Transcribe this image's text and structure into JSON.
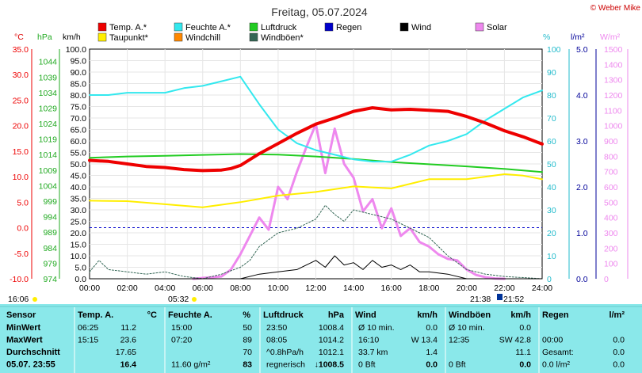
{
  "header": {
    "title": "Freitag, 05.07.2024",
    "copyright": "© Weber Mike"
  },
  "legend": [
    {
      "label": "Temp. A.*",
      "color": "#ee0000"
    },
    {
      "label": "Feuchte A.*",
      "color": "#33e8ee"
    },
    {
      "label": "Luftdruck",
      "color": "#22cc22"
    },
    {
      "label": "Regen",
      "color": "#0000cc"
    },
    {
      "label": "Wind",
      "color": "#000000"
    },
    {
      "label": "Solar",
      "color": "#ee88ee"
    },
    {
      "label": "Taupunkt*",
      "color": "#ffee00"
    },
    {
      "label": "Windchill",
      "color": "#ff8800"
    },
    {
      "label": "Windböen*",
      "color": "#336655"
    }
  ],
  "units": {
    "temp": "°C",
    "press": "hPa",
    "wind": "km/h",
    "hum": "%",
    "rain": "l/m²",
    "solar": "W/m²"
  },
  "events": {
    "t1": "16:06",
    "t2": "05:32",
    "t3": "21:38",
    "t4": "21:52"
  },
  "chart_data": {
    "type": "line",
    "x_range_hours": [
      0,
      24
    ],
    "x_ticks": [
      "00:00",
      "02:00",
      "04:00",
      "06:00",
      "08:00",
      "10:00",
      "12:00",
      "14:00",
      "16:00",
      "18:00",
      "20:00",
      "22:00",
      "24:00"
    ],
    "axes": {
      "temp": {
        "min": -10,
        "max": 35,
        "ticks": [
          "35.0",
          "30.0",
          "25.0",
          "20.0",
          "15.0",
          "10.0",
          "5.0",
          "0.0",
          "-5.0",
          "-10.0"
        ],
        "color": "#ee0000"
      },
      "press": {
        "min": 974,
        "max": 1048,
        "ticks": [
          "1044",
          "1039",
          "1034",
          "1029",
          "1024",
          "1019",
          "1014",
          "1009",
          "1004",
          "999",
          "994",
          "989",
          "984",
          "979",
          "974"
        ],
        "color": "#22aa22"
      },
      "wind": {
        "min": 0,
        "max": 100,
        "ticks": [
          "100.0",
          "95.0",
          "90.0",
          "85.0",
          "80.0",
          "75.0",
          "70.0",
          "65.0",
          "60.0",
          "55.0",
          "50.0",
          "45.0",
          "40.0",
          "35.0",
          "30.0",
          "25.0",
          "20.0",
          "15.0",
          "10.0",
          "5.0",
          "0.0"
        ],
        "color": "#000000"
      },
      "hum": {
        "min": 0,
        "max": 100,
        "ticks": [
          "100",
          "90",
          "80",
          "70",
          "60",
          "50",
          "40",
          "30",
          "20",
          "10",
          "0"
        ],
        "color": "#22bbcc"
      },
      "rain": {
        "min": 0,
        "max": 5,
        "ticks": [
          "5.0",
          "4.0",
          "3.0",
          "2.0",
          "1.0",
          "0.0"
        ],
        "color": "#000099"
      },
      "solar": {
        "min": 0,
        "max": 1500,
        "ticks": [
          "1500",
          "1400",
          "1300",
          "1200",
          "1100",
          "1000",
          "900",
          "800",
          "700",
          "600",
          "500",
          "400",
          "300",
          "200",
          "100",
          "0"
        ],
        "color": "#ee88ee"
      }
    },
    "series": [
      {
        "name": "Temp. A.*",
        "axis": "temp",
        "x": [
          0,
          1,
          2,
          3,
          4,
          5,
          6,
          7,
          7.5,
          8,
          9,
          10,
          11,
          12,
          13,
          14,
          15,
          16,
          17,
          18,
          19,
          20,
          21,
          22,
          23,
          24
        ],
        "y": [
          13.2,
          13.0,
          12.5,
          12.0,
          11.8,
          11.4,
          11.2,
          11.3,
          11.6,
          12.2,
          14.5,
          16.5,
          18.5,
          20.3,
          21.5,
          22.8,
          23.5,
          23.1,
          23.2,
          23.0,
          22.8,
          21.8,
          20.5,
          19.0,
          17.8,
          16.4
        ]
      },
      {
        "name": "Feuchte A.*",
        "axis": "hum",
        "x": [
          0,
          1,
          2,
          3,
          4,
          5,
          6,
          7,
          8,
          9,
          10,
          11,
          12,
          13,
          14,
          15,
          16,
          17,
          18,
          19,
          20,
          21,
          22,
          23,
          24
        ],
        "y": [
          80,
          80,
          81,
          81,
          81,
          83,
          84,
          86,
          88,
          76,
          65,
          59,
          56,
          54,
          52,
          51,
          51,
          54,
          58,
          60,
          63,
          69,
          74,
          79,
          82
        ]
      },
      {
        "name": "Luftdruck",
        "axis": "press",
        "x": [
          0,
          2,
          4,
          6,
          8,
          10,
          12,
          14,
          16,
          18,
          20,
          22,
          24
        ],
        "y": [
          1013,
          1013.4,
          1013.6,
          1013.9,
          1014.2,
          1014.0,
          1013.4,
          1012.6,
          1011.6,
          1010.9,
          1010.2,
          1009.4,
          1008.4
        ]
      },
      {
        "name": "Taupunkt*",
        "axis": "temp",
        "x": [
          0,
          2,
          4,
          6,
          8,
          10,
          12,
          14,
          16,
          18,
          20,
          22,
          23,
          24
        ],
        "y": [
          5.3,
          5.2,
          4.6,
          4.0,
          5.0,
          6.3,
          7.0,
          8.1,
          7.7,
          9.5,
          9.5,
          10.5,
          10.2,
          9.5
        ]
      },
      {
        "name": "Solar",
        "axis": "solar",
        "x": [
          5.5,
          7,
          7.5,
          8,
          8.5,
          9,
          9.5,
          10,
          10.5,
          11,
          11.5,
          12,
          12.5,
          13,
          13.5,
          14,
          14.5,
          15,
          15.5,
          16,
          16.5,
          17,
          17.5,
          18,
          18.5,
          19,
          19.5,
          20,
          20.5,
          21,
          21.5,
          22
        ],
        "y": [
          0,
          15,
          60,
          160,
          280,
          400,
          320,
          600,
          520,
          700,
          860,
          1010,
          690,
          980,
          750,
          660,
          440,
          520,
          330,
          460,
          280,
          330,
          240,
          210,
          160,
          130,
          120,
          60,
          25,
          10,
          2,
          0
        ]
      },
      {
        "name": "Wind",
        "axis": "wind",
        "x": [
          0,
          6,
          8,
          9,
          10,
          11,
          12,
          12.5,
          13,
          13.5,
          14,
          14.5,
          15,
          15.5,
          16,
          16.5,
          17,
          17.5,
          18,
          19,
          20,
          24
        ],
        "y": [
          0,
          0,
          0,
          2,
          3,
          4,
          8,
          5,
          10,
          6,
          7,
          4,
          8,
          5,
          6,
          4,
          6,
          3,
          3,
          2,
          0,
          0
        ]
      },
      {
        "name": "Windböen*",
        "axis": "wind",
        "x": [
          0,
          0.5,
          1,
          2,
          3,
          4,
          5,
          6,
          7,
          8,
          8.5,
          9,
          10,
          11,
          12,
          12.5,
          13,
          13.5,
          14,
          15,
          16,
          17,
          18,
          19,
          20,
          21,
          22,
          24
        ],
        "y": [
          3,
          8,
          4,
          3,
          2,
          3,
          1,
          0,
          2,
          5,
          8,
          14,
          20,
          22,
          26,
          32,
          28,
          25,
          30,
          28,
          26,
          22,
          18,
          10,
          4,
          2,
          1,
          0
        ]
      }
    ]
  },
  "table": {
    "headers": [
      "Sensor",
      "Temp. A.",
      "°C",
      "Feuchte A.",
      "%",
      "Luftdruck",
      "hPa",
      "Wind",
      "km/h",
      "Windböen",
      "km/h",
      "Regen",
      "l/m²"
    ],
    "rows": [
      {
        "label": "MinWert",
        "cells": [
          "06:25",
          "11.2",
          "15:00",
          "50",
          "23:50",
          "1008.4",
          "Ø 10 min.",
          "0.0",
          "Ø 10 min.",
          "0.0",
          "",
          ""
        ]
      },
      {
        "label": "MaxWert",
        "cells": [
          "15:15",
          "23.6",
          "07:20",
          "89",
          "08:05",
          "1014.2",
          "16:10",
          "W 13.4",
          "12:35",
          "SW 42.8",
          "00:00",
          "0.0"
        ]
      },
      {
        "label": "Durchschnitt",
        "cells": [
          "",
          "17.65",
          "",
          "70",
          "^0.8hPa/h",
          "1012.1",
          "33.7 km",
          "1.4",
          "",
          "11.1",
          "Gesamt:",
          "0.0"
        ]
      },
      {
        "label": "05.07. 23:55",
        "cells": [
          "",
          "16.4",
          "11.60 g/m²",
          "83",
          "regnerisch",
          "↓1008.5",
          "0 Bft",
          "0.0",
          "0 Bft",
          "0.0",
          "0.0 l/m²",
          "0.0"
        ]
      }
    ]
  }
}
